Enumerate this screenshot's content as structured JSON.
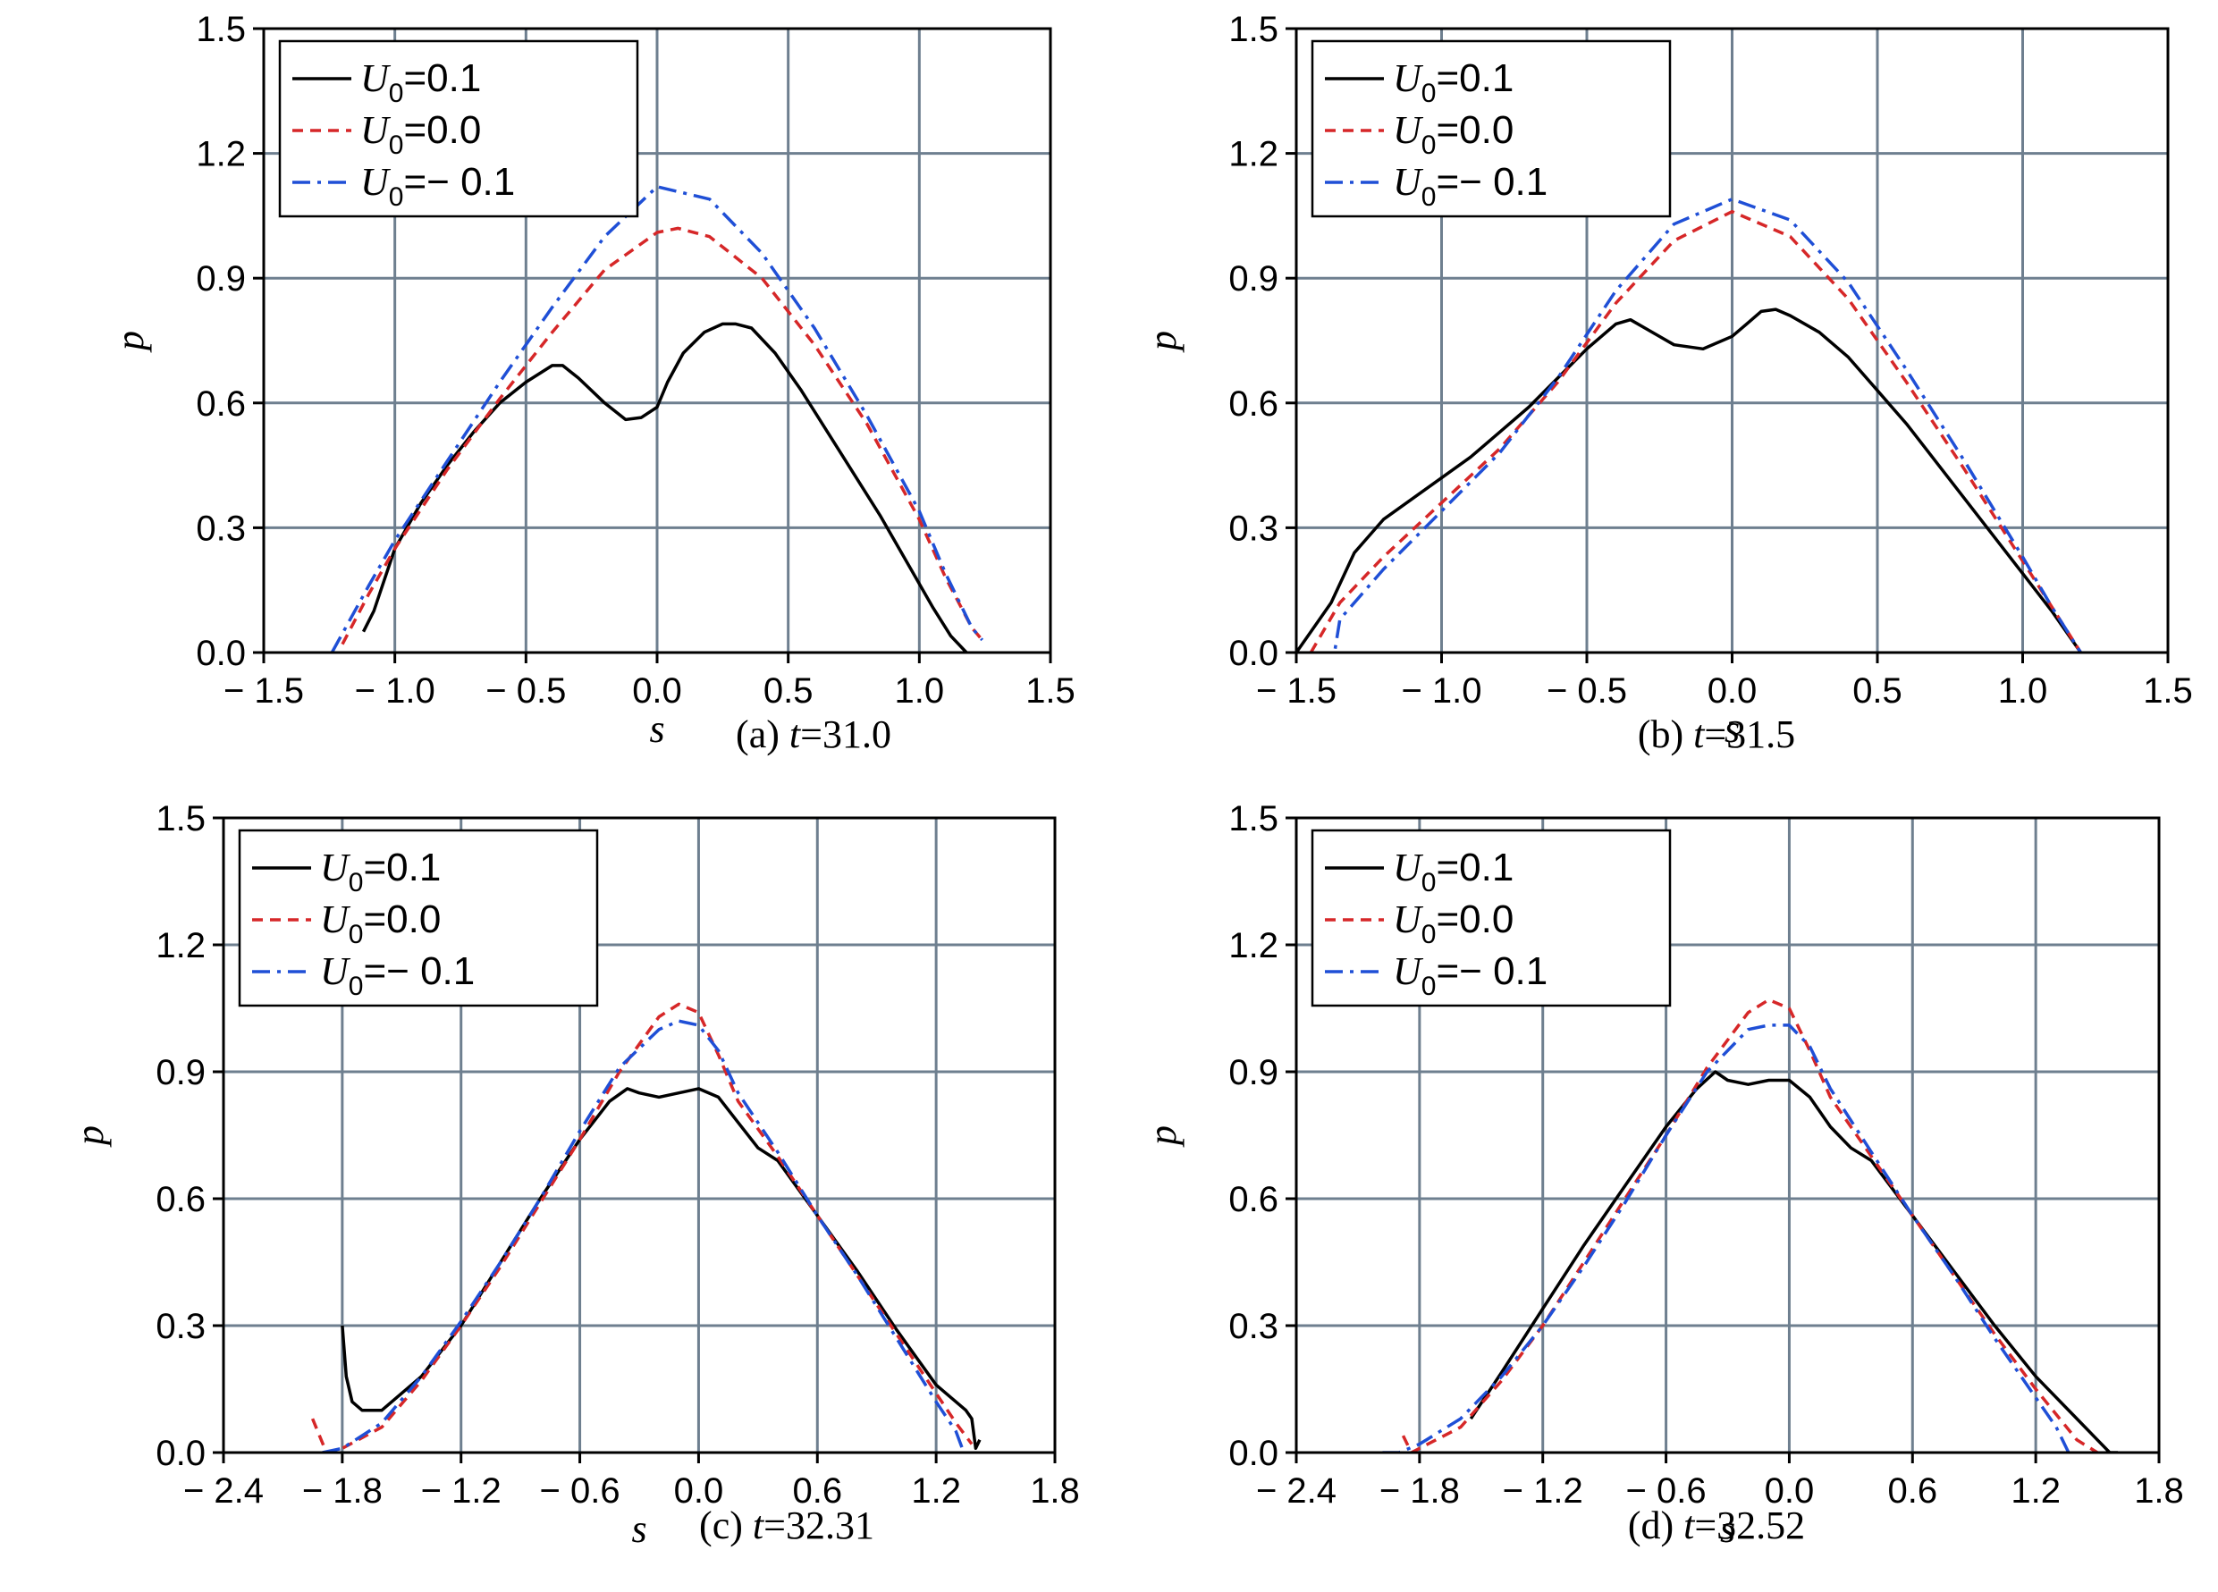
{
  "chart_data": [
    {
      "type": "line",
      "caption": {
        "prefix": "(a) ",
        "var": "t",
        "value": "=31.0"
      },
      "xlabel": "s",
      "ylabel": "p",
      "xlim": [
        -1.5,
        1.5
      ],
      "ylim": [
        0.0,
        1.5
      ],
      "xticks": [
        -1.5,
        -1.0,
        -0.5,
        0.0,
        0.5,
        1.0,
        1.5
      ],
      "xtick_labels": [
        "− 1.5",
        "− 1.0",
        "− 0.5",
        "0.0",
        "0.5",
        "1.0",
        "1.5"
      ],
      "yticks": [
        0.0,
        0.3,
        0.6,
        0.9,
        1.2,
        1.5
      ],
      "ytick_labels": [
        "0.0",
        "0.3",
        "0.6",
        "0.9",
        "1.2",
        "1.5"
      ],
      "grid": true,
      "legend": "top-left",
      "series": [
        {
          "name": "U0=0.1",
          "legend_var": "U",
          "legend_sub": "0",
          "legend_value": "=0.1",
          "color": "#000000",
          "style": "solid",
          "x": [
            -1.12,
            -1.08,
            -1.0,
            -0.9,
            -0.8,
            -0.7,
            -0.6,
            -0.5,
            -0.4,
            -0.36,
            -0.3,
            -0.2,
            -0.12,
            -0.06,
            0.0,
            0.04,
            0.1,
            0.18,
            0.25,
            0.3,
            0.36,
            0.45,
            0.55,
            0.65,
            0.75,
            0.85,
            0.95,
            1.05,
            1.12,
            1.18
          ],
          "y": [
            0.05,
            0.1,
            0.25,
            0.36,
            0.45,
            0.53,
            0.6,
            0.65,
            0.69,
            0.69,
            0.66,
            0.6,
            0.56,
            0.565,
            0.59,
            0.65,
            0.72,
            0.77,
            0.79,
            0.79,
            0.78,
            0.72,
            0.63,
            0.53,
            0.43,
            0.33,
            0.22,
            0.11,
            0.04,
            0.0
          ]
        },
        {
          "name": "U0=0.0",
          "legend_var": "U",
          "legend_sub": "0",
          "legend_value": "=0.0",
          "color": "#d62728",
          "style": "dash",
          "x": [
            -1.2,
            -1.1,
            -1.0,
            -0.8,
            -0.6,
            -0.4,
            -0.2,
            0.0,
            0.08,
            0.2,
            0.4,
            0.6,
            0.8,
            1.0,
            1.1,
            1.2,
            1.24
          ],
          "y": [
            0.02,
            0.14,
            0.25,
            0.44,
            0.61,
            0.77,
            0.92,
            1.01,
            1.02,
            1.0,
            0.9,
            0.74,
            0.55,
            0.32,
            0.18,
            0.06,
            0.03
          ]
        },
        {
          "name": "U0=− 0.1",
          "legend_var": "U",
          "legend_sub": "0",
          "legend_value": "=− 0.1",
          "color": "#1f4fd6",
          "style": "dashdot",
          "x": [
            -1.24,
            -1.1,
            -1.0,
            -0.8,
            -0.6,
            -0.4,
            -0.2,
            0.0,
            0.2,
            0.4,
            0.6,
            0.8,
            1.0,
            1.1,
            1.2,
            1.24
          ],
          "y": [
            0.0,
            0.16,
            0.27,
            0.46,
            0.65,
            0.83,
            1.0,
            1.12,
            1.09,
            0.96,
            0.78,
            0.57,
            0.34,
            0.19,
            0.06,
            0.03
          ]
        }
      ]
    },
    {
      "type": "line",
      "caption": {
        "prefix": "(b) ",
        "var": "t",
        "value": "=31.5"
      },
      "xlabel": "s",
      "ylabel": "p",
      "xlim": [
        -1.5,
        1.5
      ],
      "ylim": [
        0.0,
        1.5
      ],
      "xticks": [
        -1.5,
        -1.0,
        -0.5,
        0.0,
        0.5,
        1.0,
        1.5
      ],
      "xtick_labels": [
        "− 1.5",
        "− 1.0",
        "− 0.5",
        "0.0",
        "0.5",
        "1.0",
        "1.5"
      ],
      "yticks": [
        0.0,
        0.3,
        0.6,
        0.9,
        1.2,
        1.5
      ],
      "ytick_labels": [
        "0.0",
        "0.3",
        "0.6",
        "0.9",
        "1.2",
        "1.5"
      ],
      "grid": true,
      "legend": "top-left",
      "series": [
        {
          "name": "U0=0.1",
          "legend_var": "U",
          "legend_sub": "0",
          "legend_value": "=0.1",
          "color": "#000000",
          "style": "solid",
          "x": [
            -1.5,
            -1.45,
            -1.38,
            -1.3,
            -1.2,
            -1.1,
            -1.0,
            -0.9,
            -0.8,
            -0.7,
            -0.6,
            -0.5,
            -0.4,
            -0.35,
            -0.3,
            -0.2,
            -0.1,
            0.0,
            0.05,
            0.1,
            0.15,
            0.2,
            0.3,
            0.4,
            0.5,
            0.6,
            0.7,
            0.8,
            0.9,
            1.0,
            1.1,
            1.2
          ],
          "y": [
            0.0,
            0.05,
            0.12,
            0.24,
            0.32,
            0.37,
            0.42,
            0.47,
            0.53,
            0.59,
            0.66,
            0.73,
            0.79,
            0.8,
            0.78,
            0.74,
            0.73,
            0.76,
            0.79,
            0.82,
            0.825,
            0.81,
            0.77,
            0.71,
            0.63,
            0.55,
            0.46,
            0.37,
            0.28,
            0.19,
            0.1,
            0.0
          ]
        },
        {
          "name": "U0=0.0",
          "legend_var": "U",
          "legend_sub": "0",
          "legend_value": "=0.0",
          "color": "#d62728",
          "style": "dash",
          "x": [
            -1.45,
            -1.35,
            -1.2,
            -1.0,
            -0.8,
            -0.6,
            -0.4,
            -0.2,
            0.0,
            0.2,
            0.4,
            0.6,
            0.8,
            1.0,
            1.1,
            1.2
          ],
          "y": [
            0.0,
            0.12,
            0.23,
            0.36,
            0.49,
            0.65,
            0.84,
            0.99,
            1.06,
            1.0,
            0.85,
            0.65,
            0.44,
            0.22,
            0.11,
            0.0
          ]
        },
        {
          "name": "U0=− 0.1",
          "legend_var": "U",
          "legend_sub": "0",
          "legend_value": "=− 0.1",
          "color": "#1f4fd6",
          "style": "dashdot",
          "x": [
            -1.38,
            -1.35,
            -1.2,
            -1.0,
            -0.8,
            -0.6,
            -0.4,
            -0.2,
            0.0,
            0.2,
            0.4,
            0.6,
            0.8,
            1.0,
            1.1,
            1.2
          ],
          "y": [
            -0.05,
            0.08,
            0.2,
            0.34,
            0.48,
            0.66,
            0.87,
            1.03,
            1.09,
            1.04,
            0.89,
            0.68,
            0.46,
            0.23,
            0.11,
            0.0
          ]
        }
      ]
    },
    {
      "type": "line",
      "caption": {
        "prefix": "(c) ",
        "var": "t",
        "value": "=32.31"
      },
      "xlabel": "s",
      "ylabel": "p",
      "xlim": [
        -2.4,
        1.8
      ],
      "ylim": [
        0.0,
        1.5
      ],
      "xticks": [
        -2.4,
        -1.8,
        -1.2,
        -0.6,
        0.0,
        0.6,
        1.2,
        1.8
      ],
      "xtick_labels": [
        "− 2.4",
        "− 1.8",
        "− 1.2",
        "− 0.6",
        "0.0",
        "0.6",
        "1.2",
        "1.8"
      ],
      "yticks": [
        0.0,
        0.3,
        0.6,
        0.9,
        1.2,
        1.5
      ],
      "ytick_labels": [
        "0.0",
        "0.3",
        "0.6",
        "0.9",
        "1.2",
        "1.5"
      ],
      "grid": true,
      "legend": "top-left",
      "series": [
        {
          "name": "U0=0.1",
          "legend_var": "U",
          "legend_sub": "0",
          "legend_value": "=0.1",
          "color": "#000000",
          "style": "solid",
          "x": [
            -1.8,
            -1.78,
            -1.75,
            -1.7,
            -1.6,
            -1.4,
            -1.2,
            -1.0,
            -0.8,
            -0.6,
            -0.45,
            -0.36,
            -0.3,
            -0.2,
            -0.1,
            0.0,
            0.1,
            0.2,
            0.3,
            0.4,
            0.6,
            0.8,
            1.0,
            1.2,
            1.35,
            1.38,
            1.4,
            1.42
          ],
          "y": [
            0.3,
            0.18,
            0.12,
            0.1,
            0.1,
            0.18,
            0.3,
            0.45,
            0.6,
            0.74,
            0.83,
            0.86,
            0.85,
            0.84,
            0.85,
            0.86,
            0.84,
            0.78,
            0.72,
            0.69,
            0.56,
            0.43,
            0.29,
            0.16,
            0.1,
            0.08,
            0.01,
            0.03
          ]
        },
        {
          "name": "U0=0.0",
          "legend_var": "U",
          "legend_sub": "0",
          "legend_value": "=0.0",
          "color": "#d62728",
          "style": "dash",
          "x": [
            -1.95,
            -1.88,
            -1.8,
            -1.6,
            -1.4,
            -1.2,
            -1.0,
            -0.8,
            -0.6,
            -0.4,
            -0.2,
            -0.1,
            0.0,
            0.1,
            0.2,
            0.4,
            0.6,
            0.8,
            1.0,
            1.2,
            1.3,
            1.38
          ],
          "y": [
            0.08,
            0.0,
            0.01,
            0.06,
            0.17,
            0.3,
            0.44,
            0.59,
            0.74,
            0.9,
            1.03,
            1.06,
            1.04,
            0.94,
            0.83,
            0.7,
            0.56,
            0.42,
            0.28,
            0.14,
            0.07,
            0.02
          ]
        },
        {
          "name": "U0=− 0.1",
          "legend_var": "U",
          "legend_sub": "0",
          "legend_value": "=− 0.1",
          "color": "#1f4fd6",
          "style": "dashdot",
          "x": [
            -1.9,
            -1.8,
            -1.6,
            -1.4,
            -1.2,
            -1.0,
            -0.8,
            -0.6,
            -0.4,
            -0.2,
            -0.1,
            0.0,
            0.1,
            0.2,
            0.4,
            0.6,
            0.8,
            1.0,
            1.2,
            1.3,
            1.34
          ],
          "y": [
            0.0,
            0.01,
            0.07,
            0.18,
            0.31,
            0.45,
            0.6,
            0.76,
            0.91,
            1.0,
            1.02,
            1.01,
            0.95,
            0.85,
            0.71,
            0.56,
            0.42,
            0.27,
            0.12,
            0.05,
            0.0
          ]
        }
      ]
    },
    {
      "type": "line",
      "caption": {
        "prefix": "(d) ",
        "var": "t",
        "value": "=32.52"
      },
      "xlabel": "s",
      "ylabel": "p",
      "xlim": [
        -2.4,
        1.8
      ],
      "ylim": [
        0.0,
        1.5
      ],
      "xticks": [
        -2.4,
        -1.8,
        -1.2,
        -0.6,
        0.0,
        0.6,
        1.2,
        1.8
      ],
      "xtick_labels": [
        "− 2.4",
        "− 1.8",
        "− 1.2",
        "− 0.6",
        "0.0",
        "0.6",
        "1.2",
        "1.8"
      ],
      "yticks": [
        0.0,
        0.3,
        0.6,
        0.9,
        1.2,
        1.5
      ],
      "ytick_labels": [
        "0.0",
        "0.3",
        "0.6",
        "0.9",
        "1.2",
        "1.5"
      ],
      "grid": true,
      "legend": "top-left",
      "series": [
        {
          "name": "U0=0.1",
          "legend_var": "U",
          "legend_sub": "0",
          "legend_value": "=0.1",
          "color": "#000000",
          "style": "solid",
          "x": [
            -1.55,
            -1.4,
            -1.2,
            -1.0,
            -0.8,
            -0.6,
            -0.45,
            -0.36,
            -0.3,
            -0.2,
            -0.1,
            0.0,
            0.1,
            0.2,
            0.3,
            0.4,
            0.6,
            0.8,
            1.0,
            1.2,
            1.4,
            1.5,
            1.56,
            1.6
          ],
          "y": [
            0.08,
            0.19,
            0.34,
            0.49,
            0.63,
            0.77,
            0.86,
            0.9,
            0.88,
            0.87,
            0.88,
            0.88,
            0.84,
            0.77,
            0.72,
            0.69,
            0.56,
            0.43,
            0.3,
            0.18,
            0.08,
            0.03,
            0.0,
            0.0
          ]
        },
        {
          "name": "U0=0.0",
          "legend_var": "U",
          "legend_sub": "0",
          "legend_value": "=0.0",
          "color": "#d62728",
          "style": "dash",
          "x": [
            -1.88,
            -1.84,
            -1.8,
            -1.6,
            -1.4,
            -1.2,
            -1.0,
            -0.8,
            -0.6,
            -0.4,
            -0.2,
            -0.1,
            0.0,
            0.1,
            0.2,
            0.4,
            0.6,
            0.8,
            1.0,
            1.2,
            1.4,
            1.5
          ],
          "y": [
            0.04,
            0.0,
            0.01,
            0.06,
            0.17,
            0.3,
            0.45,
            0.6,
            0.75,
            0.91,
            1.04,
            1.07,
            1.05,
            0.95,
            0.84,
            0.7,
            0.56,
            0.42,
            0.28,
            0.15,
            0.03,
            0.0
          ]
        },
        {
          "name": "U0=− 0.1",
          "legend_var": "U",
          "legend_sub": "0",
          "legend_value": "=− 0.1",
          "color": "#1f4fd6",
          "style": "dashdot",
          "x": [
            -1.98,
            -1.9,
            -1.8,
            -1.6,
            -1.4,
            -1.2,
            -1.0,
            -0.8,
            -0.6,
            -0.4,
            -0.2,
            -0.1,
            0.0,
            0.1,
            0.2,
            0.4,
            0.6,
            0.8,
            1.0,
            1.2,
            1.3,
            1.36
          ],
          "y": [
            0.0,
            0.0,
            0.02,
            0.08,
            0.18,
            0.3,
            0.44,
            0.59,
            0.75,
            0.9,
            1.0,
            1.01,
            1.01,
            0.96,
            0.86,
            0.71,
            0.56,
            0.42,
            0.27,
            0.13,
            0.06,
            0.0
          ]
        }
      ]
    }
  ]
}
